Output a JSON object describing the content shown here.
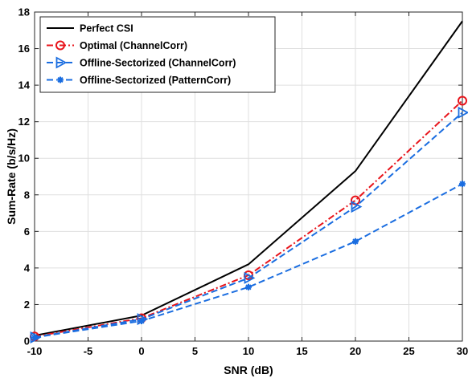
{
  "chart_data": {
    "type": "line",
    "title": "",
    "xlabel": "SNR (dB)",
    "ylabel": "Sum-Rate (b/s/Hz)",
    "xlim": [
      -10,
      30
    ],
    "ylim": [
      0,
      18
    ],
    "xticks": [
      "-10",
      "-5",
      "0",
      "5",
      "10",
      "15",
      "20",
      "25",
      "30"
    ],
    "yticks": [
      "0",
      "2",
      "4",
      "6",
      "8",
      "10",
      "12",
      "14",
      "16",
      "18"
    ],
    "grid": true,
    "legend_position": "top-left",
    "x": [
      -10,
      0,
      10,
      20,
      30
    ],
    "series": [
      {
        "name": "Perfect CSI",
        "values": [
          0.3,
          1.4,
          4.2,
          9.3,
          17.5
        ],
        "color": "#000000",
        "dash": "solid",
        "marker": "none"
      },
      {
        "name": "Optimal (ChannelCorr)",
        "values": [
          0.25,
          1.25,
          3.6,
          7.7,
          13.15
        ],
        "color": "#e8141b",
        "dash": "dashdot",
        "marker": "circle"
      },
      {
        "name": "Offline-Sectorized (ChannelCorr)",
        "values": [
          0.2,
          1.2,
          3.45,
          7.35,
          12.5
        ],
        "color": "#1a6de0",
        "dash": "dash",
        "marker": "triangle-right"
      },
      {
        "name": "Offline-Sectorized (PatternCorr)",
        "values": [
          0.2,
          1.1,
          2.95,
          5.45,
          8.6
        ],
        "color": "#1a6de0",
        "dash": "dash",
        "marker": "asterisk"
      }
    ]
  }
}
